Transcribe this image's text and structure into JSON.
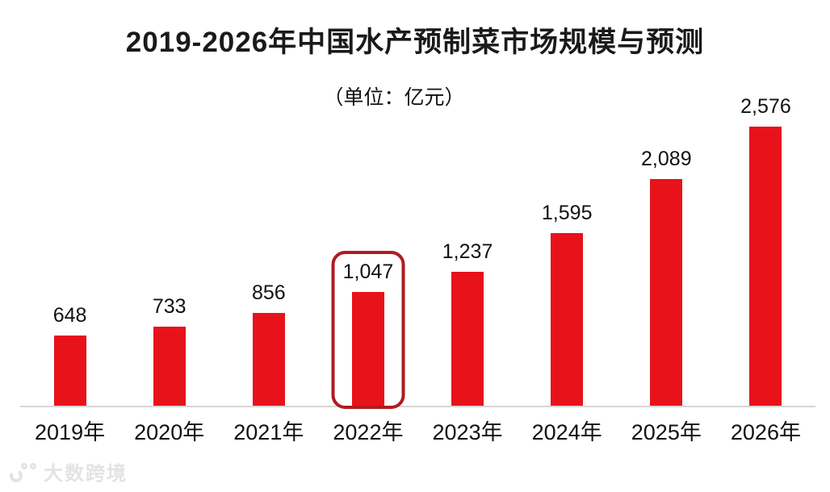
{
  "header": {
    "title": "2019-2026年中国水产预制菜市场规模与预测",
    "subtitle": "（单位：亿元）"
  },
  "chart_data": {
    "type": "bar",
    "title": "2019-2026年中国水产预制菜市场规模与预测",
    "subtitle": "（单位：亿元）",
    "unit": "亿元",
    "categories": [
      "2019年",
      "2020年",
      "2021年",
      "2022年",
      "2023年",
      "2024年",
      "2025年",
      "2026年"
    ],
    "values": [
      648,
      733,
      856,
      1047,
      1237,
      1595,
      2089,
      2576
    ],
    "value_labels": [
      "648",
      "733",
      "856",
      "1,047",
      "1,237",
      "1,595",
      "2,089",
      "2,576"
    ],
    "highlight_index": 3,
    "highlight_category": "2022年",
    "xlabel": "",
    "ylabel": "",
    "ylim": [
      0,
      2700
    ],
    "grid": false,
    "legend": "none",
    "bar_color": "#e8121a",
    "highlight_border_color": "#b01b20",
    "axis_line_color": "#d6d6d6",
    "label_color": "#111111"
  },
  "watermark": {
    "text": "大数跨境"
  }
}
